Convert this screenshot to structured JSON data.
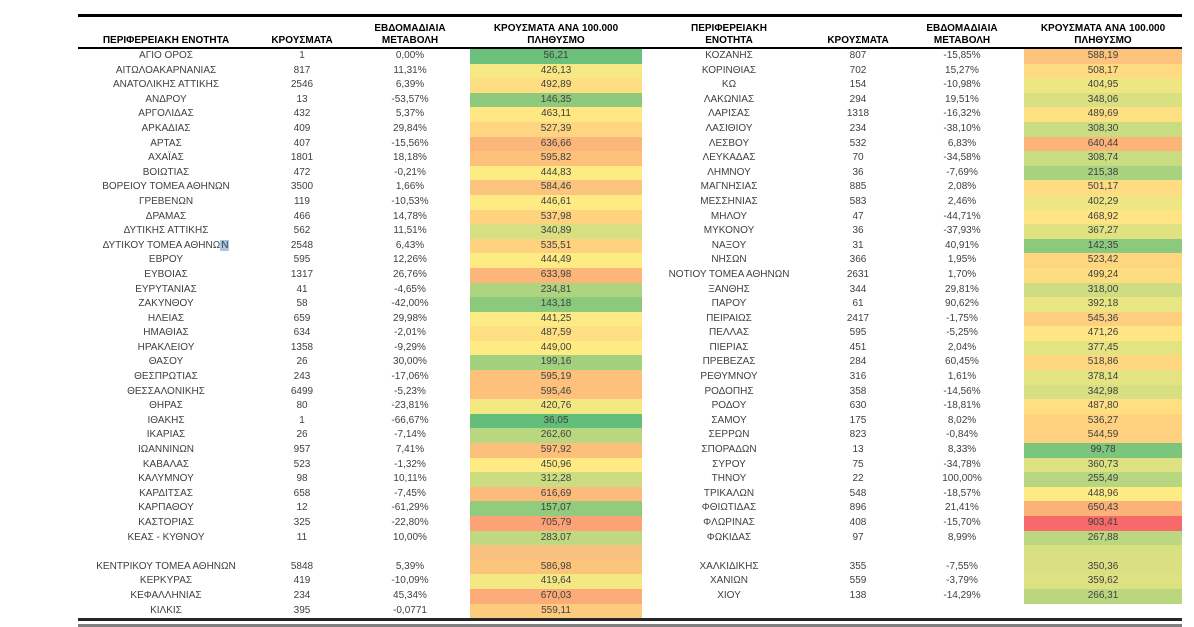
{
  "headers": {
    "region": "ΠΕΡΙΦΕΡΕΙΑΚΗ ΕΝΟΤΗΤΑ",
    "cases": "ΚΡΟΥΣΜΑΤΑ",
    "weekly_change": "ΕΒΔΟΜΑΔΙΑΙΑ ΜΕΤΑΒΟΛΗ",
    "per_100k": "ΚΡΟΥΣΜΑΤΑ ΑΝΑ 100.000 ΠΛΗΘΥΣΜΟ"
  },
  "color_scale": {
    "min_value": 36.05,
    "mid_value": 449.0,
    "max_value": 903.41,
    "min_color": "#63BE7B",
    "mid_color": "#FFEB84",
    "max_color": "#F8696B"
  },
  "selection_highlight_color": "#A8C6E5",
  "left_table": {
    "rows": [
      {
        "region": "ΑΓΙΟ ΟΡΟΣ",
        "cases": "1",
        "change": "0,00%",
        "per100k": "56,21"
      },
      {
        "region": "ΑΙΤΩΛΟΑΚΑΡΝΑΝΙΑΣ",
        "cases": "817",
        "change": "11,31%",
        "per100k": "426,13"
      },
      {
        "region": "ΑΝΑΤΟΛΙΚΗΣ ΑΤΤΙΚΗΣ",
        "cases": "2546",
        "change": "6,39%",
        "per100k": "492,89"
      },
      {
        "region": "ΑΝΔΡΟΥ",
        "cases": "13",
        "change": "-53,57%",
        "per100k": "146,35"
      },
      {
        "region": "ΑΡΓΟΛΙΔΑΣ",
        "cases": "432",
        "change": "5,37%",
        "per100k": "463,11"
      },
      {
        "region": "ΑΡΚΑΔΙΑΣ",
        "cases": "409",
        "change": "29,84%",
        "per100k": "527,39"
      },
      {
        "region": "ΑΡΤΑΣ",
        "cases": "407",
        "change": "-15,56%",
        "per100k": "636,66"
      },
      {
        "region": "ΑΧΑΪΑΣ",
        "cases": "1801",
        "change": "18,18%",
        "per100k": "595,82"
      },
      {
        "region": "ΒΟΙΩΤΙΑΣ",
        "cases": "472",
        "change": "-0,21%",
        "per100k": "444,83"
      },
      {
        "region": "ΒΟΡΕΙΟΥ ΤΟΜΕΑ ΑΘΗΝΩΝ",
        "cases": "3500",
        "change": "1,66%",
        "per100k": "584,46"
      },
      {
        "region": "ΓΡΕΒΕΝΩΝ",
        "cases": "119",
        "change": "-10,53%",
        "per100k": "446,61"
      },
      {
        "region": "ΔΡΑΜΑΣ",
        "cases": "466",
        "change": "14,78%",
        "per100k": "537,98"
      },
      {
        "region": "ΔΥΤΙΚΗΣ ΑΤΤΙΚΗΣ",
        "cases": "562",
        "change": "11,51%",
        "per100k": "340,89"
      },
      {
        "region": "ΔΥΤΙΚΟΥ ΤΟΜΕΑ ΑΘΗΝΩΝ",
        "cases": "2548",
        "change": "6,43%",
        "per100k": "535,51",
        "selection_highlight": true
      },
      {
        "region": "ΕΒΡΟΥ",
        "cases": "595",
        "change": "12,26%",
        "per100k": "444,49"
      },
      {
        "region": "ΕΥΒΟΙΑΣ",
        "cases": "1317",
        "change": "26,76%",
        "per100k": "633,98"
      },
      {
        "region": "ΕΥΡΥΤΑΝΙΑΣ",
        "cases": "41",
        "change": "-4,65%",
        "per100k": "234,81"
      },
      {
        "region": "ΖΑΚΥΝΘΟΥ",
        "cases": "58",
        "change": "-42,00%",
        "per100k": "143,18"
      },
      {
        "region": "ΗΛΕΙΑΣ",
        "cases": "659",
        "change": "29,98%",
        "per100k": "441,25"
      },
      {
        "region": "ΗΜΑΘΙΑΣ",
        "cases": "634",
        "change": "-2,01%",
        "per100k": "487,59"
      },
      {
        "region": "ΗΡΑΚΛΕΙΟΥ",
        "cases": "1358",
        "change": "-9,29%",
        "per100k": "449,00"
      },
      {
        "region": "ΘΑΣΟΥ",
        "cases": "26",
        "change": "30,00%",
        "per100k": "199,16"
      },
      {
        "region": "ΘΕΣΠΡΩΤΙΑΣ",
        "cases": "243",
        "change": "-17,06%",
        "per100k": "595,19"
      },
      {
        "region": "ΘΕΣΣΑΛΟΝΙΚΗΣ",
        "cases": "6499",
        "change": "-5,23%",
        "per100k": "595,46"
      },
      {
        "region": "ΘΗΡΑΣ",
        "cases": "80",
        "change": "-23,81%",
        "per100k": "420,76"
      },
      {
        "region": "ΙΘΑΚΗΣ",
        "cases": "1",
        "change": "-66,67%",
        "per100k": "36,05"
      },
      {
        "region": "ΙΚΑΡΙΑΣ",
        "cases": "26",
        "change": "-7,14%",
        "per100k": "262,60"
      },
      {
        "region": "ΙΩΑΝΝΙΝΩΝ",
        "cases": "957",
        "change": "7,41%",
        "per100k": "597,92"
      },
      {
        "region": "ΚΑΒΑΛΑΣ",
        "cases": "523",
        "change": "-1,32%",
        "per100k": "450,96"
      },
      {
        "region": "ΚΑΛΥΜΝΟΥ",
        "cases": "98",
        "change": "10,11%",
        "per100k": "312,28"
      },
      {
        "region": "ΚΑΡΔΙΤΣΑΣ",
        "cases": "658",
        "change": "-7,45%",
        "per100k": "616,69"
      },
      {
        "region": "ΚΑΡΠΑΘΟΥ",
        "cases": "12",
        "change": "-61,29%",
        "per100k": "157,07"
      },
      {
        "region": "ΚΑΣΤΟΡΙΑΣ",
        "cases": "325",
        "change": "-22,80%",
        "per100k": "705,79"
      },
      {
        "region": "ΚΕΑΣ - ΚΥΘΝΟΥ",
        "cases": "11",
        "change": "10,00%",
        "per100k": "283,07"
      },
      {
        "region": "",
        "cases": "",
        "change": "",
        "per100k": "",
        "fill_color": "#FAC07D"
      },
      {
        "region": "ΚΕΝΤΡΙΚΟΥ ΤΟΜΕΑ ΑΘΗΝΩΝ",
        "cases": "5848",
        "change": "5,39%",
        "per100k": "586,98"
      },
      {
        "region": "ΚΕΡΚΥΡΑΣ",
        "cases": "419",
        "change": "-10,09%",
        "per100k": "419,64"
      },
      {
        "region": "ΚΕΦΑΛΛΗΝΙΑΣ",
        "cases": "234",
        "change": "45,34%",
        "per100k": "670,03"
      },
      {
        "region": "ΚΙΛΚΙΣ",
        "cases": "395",
        "change": "-0,0771",
        "per100k": "559,11"
      }
    ]
  },
  "right_table": {
    "rows": [
      {
        "region": "ΚΟΖΑΝΗΣ",
        "cases": "807",
        "change": "-15,85%",
        "per100k": "588,19"
      },
      {
        "region": "ΚΟΡΙΝΘΙΑΣ",
        "cases": "702",
        "change": "15,27%",
        "per100k": "508,17"
      },
      {
        "region": "ΚΩ",
        "cases": "154",
        "change": "-10,98%",
        "per100k": "404,95"
      },
      {
        "region": "ΛΑΚΩΝΙΑΣ",
        "cases": "294",
        "change": "19,51%",
        "per100k": "348,06"
      },
      {
        "region": "ΛΑΡΙΣΑΣ",
        "cases": "1318",
        "change": "-16,32%",
        "per100k": "489,69"
      },
      {
        "region": "ΛΑΣΙΘΙΟΥ",
        "cases": "234",
        "change": "-38,10%",
        "per100k": "308,30"
      },
      {
        "region": "ΛΕΣΒΟΥ",
        "cases": "532",
        "change": "6,83%",
        "per100k": "640,44"
      },
      {
        "region": "ΛΕΥΚΑΔΑΣ",
        "cases": "70",
        "change": "-34,58%",
        "per100k": "308,74"
      },
      {
        "region": "ΛΗΜΝΟΥ",
        "cases": "36",
        "change": "-7,69%",
        "per100k": "215,38"
      },
      {
        "region": "ΜΑΓΝΗΣΙΑΣ",
        "cases": "885",
        "change": "2,08%",
        "per100k": "501,17"
      },
      {
        "region": "ΜΕΣΣΗΝΙΑΣ",
        "cases": "583",
        "change": "2,46%",
        "per100k": "402,29"
      },
      {
        "region": "ΜΗΛΟΥ",
        "cases": "47",
        "change": "-44,71%",
        "per100k": "468,92"
      },
      {
        "region": "ΜΥΚΟΝΟΥ",
        "cases": "36",
        "change": "-37,93%",
        "per100k": "367,27"
      },
      {
        "region": "ΝΑΞΟΥ",
        "cases": "31",
        "change": "40,91%",
        "per100k": "142,35"
      },
      {
        "region": "ΝΗΣΩΝ",
        "cases": "366",
        "change": "1,95%",
        "per100k": "523,42"
      },
      {
        "region": "ΝΟΤΙΟΥ ΤΟΜΕΑ ΑΘΗΝΩΝ",
        "cases": "2631",
        "change": "1,70%",
        "per100k": "499,24"
      },
      {
        "region": "ΞΑΝΘΗΣ",
        "cases": "344",
        "change": "29,81%",
        "per100k": "318,00"
      },
      {
        "region": "ΠΑΡΟΥ",
        "cases": "61",
        "change": "90,62%",
        "per100k": "392,18"
      },
      {
        "region": "ΠΕΙΡΑΙΩΣ",
        "cases": "2417",
        "change": "-1,75%",
        "per100k": "545,36"
      },
      {
        "region": "ΠΕΛΛΑΣ",
        "cases": "595",
        "change": "-5,25%",
        "per100k": "471,26"
      },
      {
        "region": "ΠΙΕΡΙΑΣ",
        "cases": "451",
        "change": "2,04%",
        "per100k": "377,45"
      },
      {
        "region": "ΠΡΕΒΕΖΑΣ",
        "cases": "284",
        "change": "60,45%",
        "per100k": "518,86"
      },
      {
        "region": "ΡΕΘΥΜΝΟΥ",
        "cases": "316",
        "change": "1,61%",
        "per100k": "378,14"
      },
      {
        "region": "ΡΟΔΟΠΗΣ",
        "cases": "358",
        "change": "-14,56%",
        "per100k": "342,98"
      },
      {
        "region": "ΡΟΔΟΥ",
        "cases": "630",
        "change": "-18,81%",
        "per100k": "487,80"
      },
      {
        "region": "ΣΑΜΟΥ",
        "cases": "175",
        "change": "8,02%",
        "per100k": "536,27"
      },
      {
        "region": "ΣΕΡΡΩΝ",
        "cases": "823",
        "change": "-0,84%",
        "per100k": "544,59"
      },
      {
        "region": "ΣΠΟΡΑΔΩΝ",
        "cases": "13",
        "change": "8,33%",
        "per100k": "99,78"
      },
      {
        "region": "ΣΥΡΟΥ",
        "cases": "75",
        "change": "-34,78%",
        "per100k": "360,73"
      },
      {
        "region": "ΤΗΝΟΥ",
        "cases": "22",
        "change": "100,00%",
        "per100k": "255,49"
      },
      {
        "region": "ΤΡΙΚΑΛΩΝ",
        "cases": "548",
        "change": "-18,57%",
        "per100k": "448,96"
      },
      {
        "region": "ΦΘΙΩΤΙΔΑΣ",
        "cases": "896",
        "change": "21,41%",
        "per100k": "650,43"
      },
      {
        "region": "ΦΛΩΡΙΝΑΣ",
        "cases": "408",
        "change": "-15,70%",
        "per100k": "903,41"
      },
      {
        "region": "ΦΩΚΙΔΑΣ",
        "cases": "97",
        "change": "8,99%",
        "per100k": "267,88"
      },
      {
        "region": "",
        "cases": "",
        "change": "",
        "per100k": "",
        "fill_color": "#D9E081"
      },
      {
        "region": "ΧΑΛΚΙΔΙΚΗΣ",
        "cases": "355",
        "change": "-7,55%",
        "per100k": "350,36"
      },
      {
        "region": "ΧΑΝΙΩΝ",
        "cases": "559",
        "change": "-3,79%",
        "per100k": "359,62"
      },
      {
        "region": "ΧΙΟΥ",
        "cases": "138",
        "change": "-14,29%",
        "per100k": "266,31"
      },
      {
        "region": "",
        "cases": "",
        "change": "",
        "per100k": ""
      }
    ]
  }
}
